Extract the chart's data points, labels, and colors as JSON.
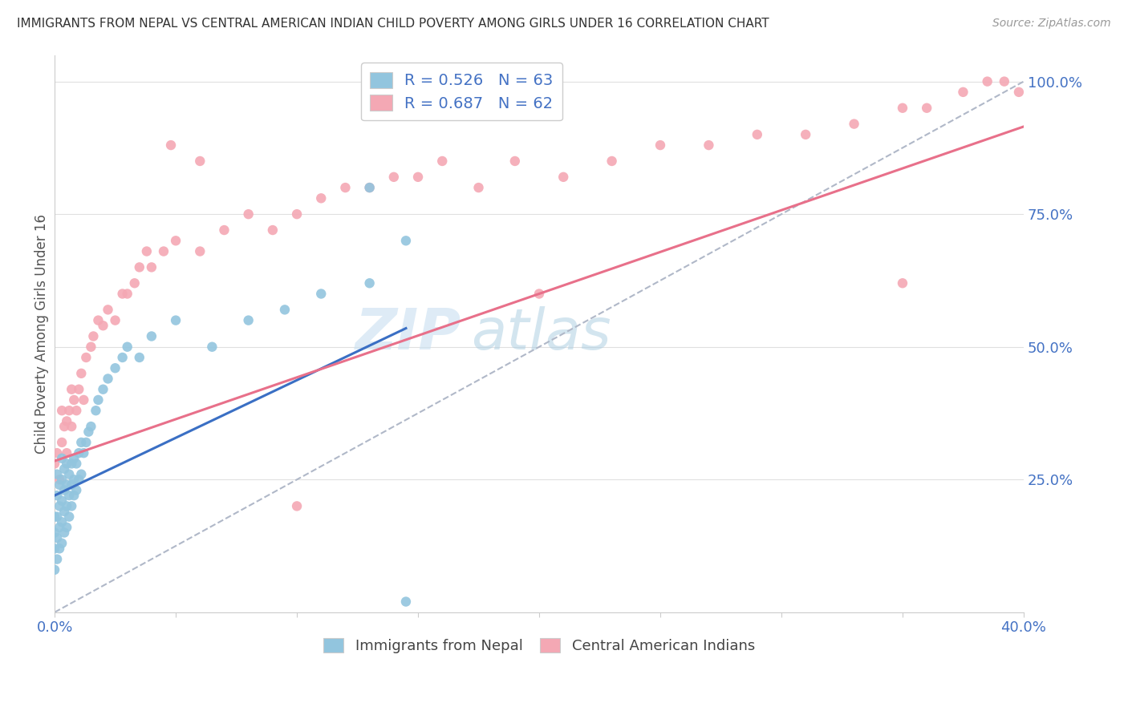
{
  "title": "IMMIGRANTS FROM NEPAL VS CENTRAL AMERICAN INDIAN CHILD POVERTY AMONG GIRLS UNDER 16 CORRELATION CHART",
  "source": "Source: ZipAtlas.com",
  "ylabel": "Child Poverty Among Girls Under 16",
  "xlim": [
    0,
    0.4
  ],
  "ylim": [
    0,
    1.05
  ],
  "ytick_positions": [
    0.0,
    0.25,
    0.5,
    0.75,
    1.0
  ],
  "ytick_labels": [
    "",
    "25.0%",
    "50.0%",
    "75.0%",
    "100.0%"
  ],
  "xtick_positions": [
    0.0,
    0.05,
    0.1,
    0.15,
    0.2,
    0.25,
    0.3,
    0.35,
    0.4
  ],
  "xtick_labels": [
    "0.0%",
    "",
    "",
    "",
    "",
    "",
    "",
    "",
    "40.0%"
  ],
  "watermark": "ZIPatlas",
  "legend1_label": "R = 0.526   N = 63",
  "legend2_label": "R = 0.687   N = 62",
  "nepal_color": "#92c5de",
  "cai_color": "#f4a8b4",
  "nepal_line_color": "#3a6fc4",
  "cai_line_color": "#e8708a",
  "dashed_line_color": "#b0b8c8",
  "nepal_line_x": [
    0.0,
    0.145
  ],
  "nepal_line_y": [
    0.22,
    0.535
  ],
  "cai_line_x": [
    0.0,
    0.4
  ],
  "cai_line_y": [
    0.285,
    0.915
  ],
  "dash_line_x": [
    0.0,
    0.4
  ],
  "dash_line_y": [
    0.0,
    1.0
  ],
  "nepal_x": [
    0.0,
    0.0,
    0.0,
    0.0,
    0.001,
    0.001,
    0.001,
    0.001,
    0.001,
    0.002,
    0.002,
    0.002,
    0.002,
    0.003,
    0.003,
    0.003,
    0.003,
    0.003,
    0.004,
    0.004,
    0.004,
    0.004,
    0.005,
    0.005,
    0.005,
    0.005,
    0.006,
    0.006,
    0.006,
    0.007,
    0.007,
    0.007,
    0.008,
    0.008,
    0.008,
    0.009,
    0.009,
    0.01,
    0.01,
    0.011,
    0.011,
    0.012,
    0.013,
    0.014,
    0.015,
    0.017,
    0.018,
    0.02,
    0.022,
    0.025,
    0.028,
    0.03,
    0.035,
    0.04,
    0.05,
    0.065,
    0.08,
    0.095,
    0.11,
    0.13,
    0.145,
    0.145,
    0.13
  ],
  "nepal_y": [
    0.08,
    0.12,
    0.15,
    0.18,
    0.1,
    0.14,
    0.18,
    0.22,
    0.26,
    0.12,
    0.16,
    0.2,
    0.24,
    0.13,
    0.17,
    0.21,
    0.25,
    0.29,
    0.15,
    0.19,
    0.23,
    0.27,
    0.16,
    0.2,
    0.24,
    0.28,
    0.18,
    0.22,
    0.26,
    0.2,
    0.24,
    0.28,
    0.22,
    0.25,
    0.29,
    0.23,
    0.28,
    0.25,
    0.3,
    0.26,
    0.32,
    0.3,
    0.32,
    0.34,
    0.35,
    0.38,
    0.4,
    0.42,
    0.44,
    0.46,
    0.48,
    0.5,
    0.48,
    0.52,
    0.55,
    0.5,
    0.55,
    0.57,
    0.6,
    0.62,
    0.7,
    0.02,
    0.8
  ],
  "cai_x": [
    0.0,
    0.001,
    0.002,
    0.003,
    0.003,
    0.004,
    0.005,
    0.005,
    0.006,
    0.007,
    0.007,
    0.008,
    0.009,
    0.01,
    0.011,
    0.012,
    0.013,
    0.015,
    0.016,
    0.018,
    0.02,
    0.022,
    0.025,
    0.028,
    0.03,
    0.033,
    0.035,
    0.038,
    0.04,
    0.045,
    0.05,
    0.06,
    0.07,
    0.08,
    0.09,
    0.1,
    0.11,
    0.12,
    0.13,
    0.14,
    0.15,
    0.16,
    0.175,
    0.19,
    0.21,
    0.23,
    0.25,
    0.27,
    0.29,
    0.31,
    0.33,
    0.35,
    0.36,
    0.375,
    0.385,
    0.392,
    0.398,
    0.048,
    0.1,
    0.06,
    0.2,
    0.35
  ],
  "cai_y": [
    0.28,
    0.3,
    0.25,
    0.32,
    0.38,
    0.35,
    0.3,
    0.36,
    0.38,
    0.35,
    0.42,
    0.4,
    0.38,
    0.42,
    0.45,
    0.4,
    0.48,
    0.5,
    0.52,
    0.55,
    0.54,
    0.57,
    0.55,
    0.6,
    0.6,
    0.62,
    0.65,
    0.68,
    0.65,
    0.68,
    0.7,
    0.68,
    0.72,
    0.75,
    0.72,
    0.75,
    0.78,
    0.8,
    0.8,
    0.82,
    0.82,
    0.85,
    0.8,
    0.85,
    0.82,
    0.85,
    0.88,
    0.88,
    0.9,
    0.9,
    0.92,
    0.95,
    0.95,
    0.98,
    1.0,
    1.0,
    0.98,
    0.88,
    0.2,
    0.85,
    0.6,
    0.62
  ],
  "legend1_patch_color": "#92c5de",
  "legend2_patch_color": "#f4a8b4",
  "bottom_legend_labels": [
    "Immigrants from Nepal",
    "Central American Indians"
  ]
}
